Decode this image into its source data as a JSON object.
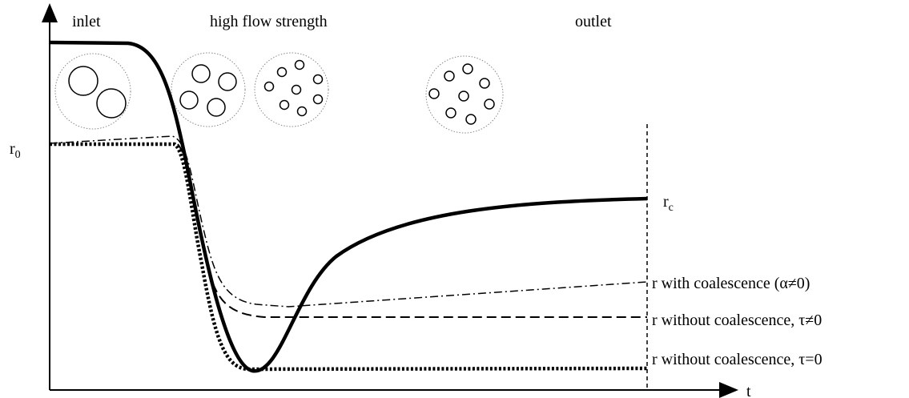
{
  "header": {
    "regions": [
      "inlet",
      "high flow strength",
      "outlet"
    ]
  },
  "axes": {
    "x_label": "t",
    "r0": {
      "base": "r",
      "sub": "0"
    },
    "rc": {
      "base": "r",
      "sub": "c"
    }
  },
  "curves": [
    {
      "label": "r with coalescence (α≠0)"
    },
    {
      "label": "r without coalescence, τ≠0"
    },
    {
      "label": "r without coalescence, τ=0"
    }
  ]
}
